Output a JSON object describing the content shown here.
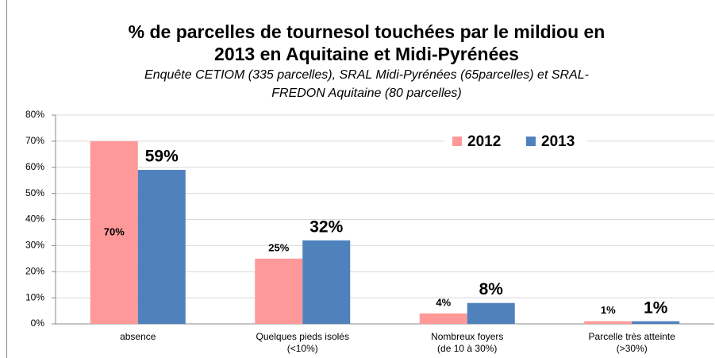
{
  "chart_data": {
    "type": "bar",
    "title": [
      "% de parcelles de tournesol touchées par le mildiou en",
      "2013 en Aquitaine et Midi-Pyrénées"
    ],
    "subtitle": [
      "Enquête CETIOM (335 parcelles), SRAL Midi-Pyrénées (65parcelles) et SRAL-",
      "FREDON Aquitaine (80 parcelles)"
    ],
    "categories": [
      [
        "absence"
      ],
      [
        "Quelques pieds isolés",
        "(<10%)"
      ],
      [
        "Nombreux foyers",
        "(de 10 à 30%)"
      ],
      [
        "Parcelle très atteinte",
        "(>30%)"
      ]
    ],
    "series": [
      {
        "name": "2012",
        "color": "#ff9999",
        "values": [
          70,
          25,
          4,
          1
        ],
        "value_labels": [
          "70%",
          "25%",
          "4%",
          "1%"
        ]
      },
      {
        "name": "2013",
        "color": "#4f81bd",
        "values": [
          59,
          32,
          8,
          1
        ],
        "value_labels": [
          "59%",
          "32%",
          "8%",
          "1%"
        ]
      }
    ],
    "ylim": [
      0,
      80
    ],
    "yticks": [
      {
        "value": 0,
        "label": "0%"
      },
      {
        "value": 10,
        "label": "10%"
      },
      {
        "value": 20,
        "label": "20%"
      },
      {
        "value": 30,
        "label": "30%"
      },
      {
        "value": 40,
        "label": "40%"
      },
      {
        "value": 50,
        "label": "50%"
      },
      {
        "value": 60,
        "label": "60%"
      },
      {
        "value": 70,
        "label": "70%"
      },
      {
        "value": 80,
        "label": "80%"
      }
    ],
    "grid": true,
    "legend": "top-right"
  }
}
